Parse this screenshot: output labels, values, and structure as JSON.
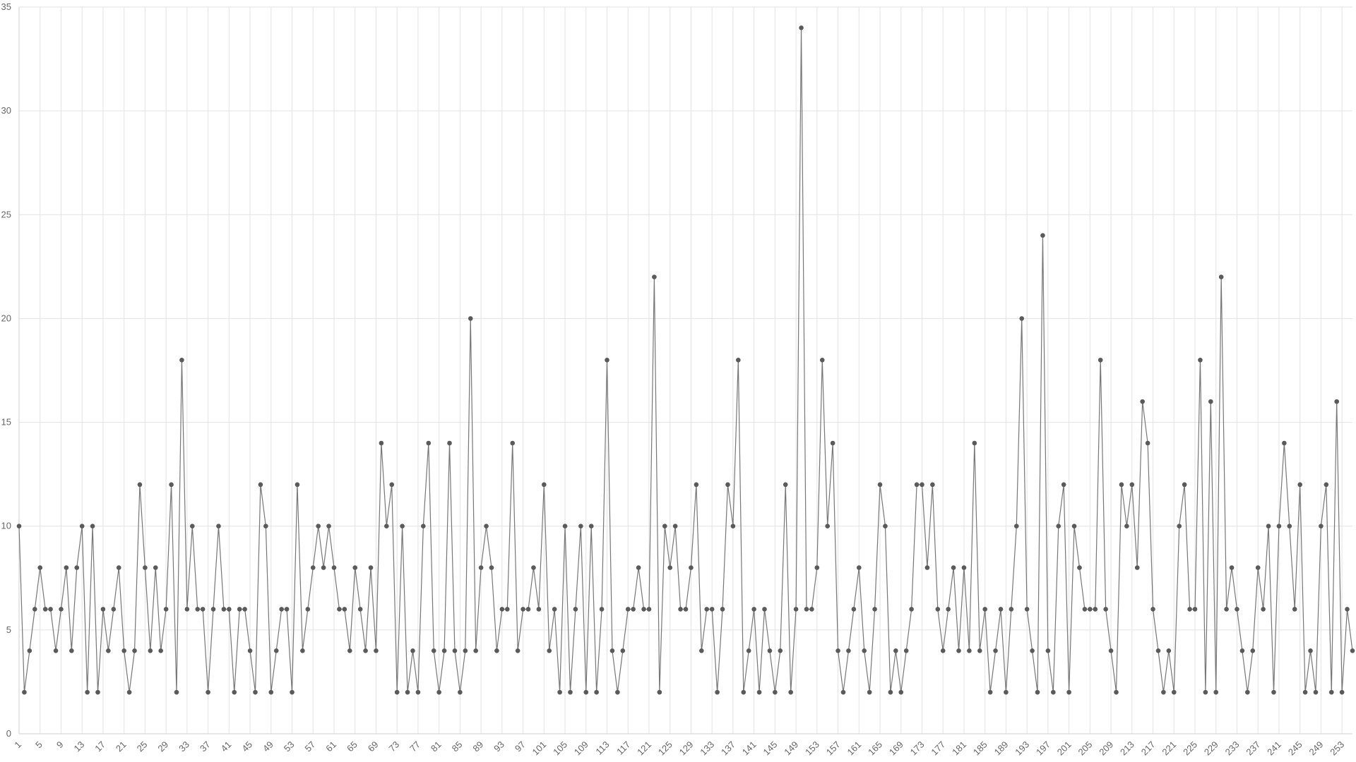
{
  "chart_data": {
    "type": "line",
    "x": [
      1,
      2,
      3,
      4,
      5,
      6,
      7,
      8,
      9,
      10,
      11,
      12,
      13,
      14,
      15,
      16,
      17,
      18,
      19,
      20,
      21,
      22,
      23,
      24,
      25,
      26,
      27,
      28,
      29,
      30,
      31,
      32,
      33,
      34,
      35,
      36,
      37,
      38,
      39,
      40,
      41,
      42,
      43,
      44,
      45,
      46,
      47,
      48,
      49,
      50,
      51,
      52,
      53,
      54,
      55,
      56,
      57,
      58,
      59,
      60,
      61,
      62,
      63,
      64,
      65,
      66,
      67,
      68,
      69,
      70,
      71,
      72,
      73,
      74,
      75,
      76,
      77,
      78,
      79,
      80,
      81,
      82,
      83,
      84,
      85,
      86,
      87,
      88,
      89,
      90,
      91,
      92,
      93,
      94,
      95,
      96,
      97,
      98,
      99,
      100,
      101,
      102,
      103,
      104,
      105,
      106,
      107,
      108,
      109,
      110,
      111,
      112,
      113,
      114,
      115,
      116,
      117,
      118,
      119,
      120,
      121,
      122,
      123,
      124,
      125,
      126,
      127,
      128,
      129,
      130,
      131,
      132,
      133,
      134,
      135,
      136,
      137,
      138,
      139,
      140,
      141,
      142,
      143,
      144,
      145,
      146,
      147,
      148,
      149,
      150,
      151,
      152,
      153,
      154,
      155,
      156,
      157,
      158,
      159,
      160,
      161,
      162,
      163,
      164,
      165,
      166,
      167,
      168,
      169,
      170,
      171,
      172,
      173,
      174,
      175,
      176,
      177,
      178,
      179,
      180,
      181,
      182,
      183,
      184,
      185,
      186,
      187,
      188,
      189,
      190,
      191,
      192,
      193,
      194,
      195,
      196,
      197,
      198,
      199,
      200,
      201,
      202,
      203,
      204,
      205,
      206,
      207,
      208,
      209,
      210,
      211,
      212,
      213,
      214,
      215,
      216,
      217,
      218,
      219,
      220,
      221,
      222,
      223,
      224,
      225,
      226,
      227,
      228,
      229,
      230,
      231,
      232,
      233,
      234,
      235,
      236,
      237,
      238,
      239,
      240,
      241,
      242,
      243,
      244,
      245,
      246,
      247,
      248,
      249,
      250,
      251,
      252,
      253,
      254,
      255
    ],
    "values": [
      10,
      2,
      4,
      6,
      8,
      6,
      6,
      4,
      6,
      8,
      4,
      8,
      10,
      2,
      10,
      2,
      6,
      4,
      6,
      8,
      4,
      2,
      4,
      12,
      8,
      4,
      8,
      4,
      6,
      12,
      2,
      18,
      6,
      10,
      6,
      6,
      2,
      6,
      10,
      6,
      6,
      2,
      6,
      6,
      4,
      2,
      12,
      10,
      2,
      4,
      6,
      6,
      2,
      12,
      4,
      6,
      8,
      10,
      8,
      10,
      8,
      6,
      6,
      4,
      8,
      6,
      4,
      8,
      4,
      14,
      10,
      12,
      2,
      10,
      2,
      4,
      2,
      10,
      14,
      4,
      2,
      4,
      14,
      4,
      2,
      4,
      20,
      4,
      8,
      10,
      8,
      4,
      6,
      6,
      14,
      4,
      6,
      6,
      8,
      6,
      12,
      4,
      6,
      2,
      10,
      2,
      6,
      10,
      2,
      10,
      2,
      6,
      18,
      4,
      2,
      4,
      6,
      6,
      8,
      6,
      6,
      22,
      2,
      10,
      8,
      10,
      6,
      6,
      8,
      12,
      4,
      6,
      6,
      2,
      6,
      12,
      10,
      18,
      2,
      4,
      6,
      2,
      6,
      4,
      2,
      4,
      12,
      2,
      6,
      34,
      6,
      6,
      8,
      18,
      10,
      14,
      4,
      2,
      4,
      6,
      8,
      4,
      2,
      6,
      12,
      10,
      2,
      4,
      2,
      4,
      6,
      12,
      12,
      8,
      12,
      6,
      4,
      6,
      8,
      4,
      8,
      4,
      14,
      4,
      6,
      2,
      4,
      6,
      2,
      6,
      10,
      20,
      6,
      4,
      2,
      24,
      4,
      2,
      10,
      12,
      2,
      10,
      8,
      6,
      6,
      6,
      18,
      6,
      4,
      2,
      12,
      10,
      12,
      8,
      16,
      14,
      6,
      4,
      2,
      4,
      2,
      10,
      12,
      6,
      6,
      18,
      2,
      16,
      2,
      22,
      6,
      8,
      6,
      4,
      2,
      4,
      8,
      6,
      10,
      2,
      10,
      14,
      10,
      6,
      12,
      2,
      4,
      2,
      10,
      12,
      2,
      16,
      2,
      6,
      4
    ],
    "color": "#777777",
    "marker_color": "#5a5a5a",
    "xlim": [
      1,
      255
    ],
    "xticks": [
      1,
      5,
      9,
      13,
      17,
      21,
      25,
      29,
      33,
      37,
      41,
      45,
      49,
      53,
      57,
      61,
      65,
      69,
      73,
      77,
      81,
      85,
      89,
      93,
      97,
      101,
      105,
      109,
      113,
      117,
      121,
      125,
      129,
      133,
      137,
      141,
      145,
      149,
      153,
      157,
      161,
      165,
      169,
      173,
      177,
      181,
      185,
      189,
      193,
      197,
      201,
      205,
      209,
      213,
      217,
      221,
      225,
      229,
      233,
      237,
      241,
      245,
      249,
      253
    ],
    "ylim": [
      0,
      35
    ],
    "yticks": [
      0,
      5,
      10,
      15,
      20,
      25,
      30,
      35
    ],
    "grid": true
  }
}
